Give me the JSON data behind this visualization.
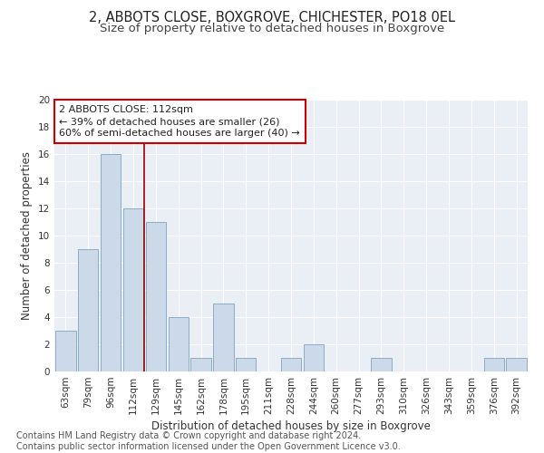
{
  "title1": "2, ABBOTS CLOSE, BOXGROVE, CHICHESTER, PO18 0EL",
  "title2": "Size of property relative to detached houses in Boxgrove",
  "xlabel": "Distribution of detached houses by size in Boxgrove",
  "ylabel": "Number of detached properties",
  "categories": [
    "63sqm",
    "79sqm",
    "96sqm",
    "112sqm",
    "129sqm",
    "145sqm",
    "162sqm",
    "178sqm",
    "195sqm",
    "211sqm",
    "228sqm",
    "244sqm",
    "260sqm",
    "277sqm",
    "293sqm",
    "310sqm",
    "326sqm",
    "343sqm",
    "359sqm",
    "376sqm",
    "392sqm"
  ],
  "values": [
    3,
    9,
    16,
    12,
    11,
    4,
    1,
    5,
    1,
    0,
    1,
    2,
    0,
    0,
    1,
    0,
    0,
    0,
    0,
    1,
    1
  ],
  "bar_color": "#ccd9e8",
  "bar_edge_color": "#8aaec8",
  "vline_color": "#990000",
  "annotation_text": "2 ABBOTS CLOSE: 112sqm\n← 39% of detached houses are smaller (26)\n60% of semi-detached houses are larger (40) →",
  "annotation_box_facecolor": "#ffffff",
  "annotation_box_edgecolor": "#cc0000",
  "ylim": [
    0,
    20
  ],
  "yticks": [
    0,
    2,
    4,
    6,
    8,
    10,
    12,
    14,
    16,
    18,
    20
  ],
  "footer": "Contains HM Land Registry data © Crown copyright and database right 2024.\nContains public sector information licensed under the Open Government Licence v3.0.",
  "bg_color": "#eaeff5",
  "title1_fontsize": 10.5,
  "title2_fontsize": 9.5,
  "xlabel_fontsize": 8.5,
  "ylabel_fontsize": 8.5,
  "tick_fontsize": 7.5,
  "annot_fontsize": 8,
  "footer_fontsize": 7
}
